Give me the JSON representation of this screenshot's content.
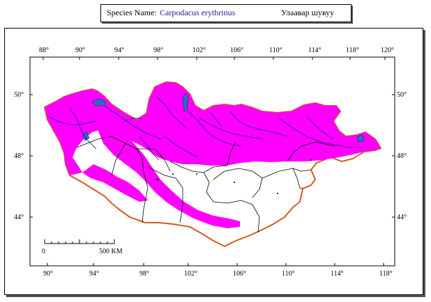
{
  "title": {
    "label": "Species Name:",
    "scientific_name": "Carpodacus erythrinus",
    "local_name": "Улаавар шувуу"
  },
  "colors": {
    "range_fill": "#ff00ff",
    "border": "#d45a1c",
    "rivers": "#1a1a99",
    "provinces": "#000000"
  },
  "axes": {
    "top": [
      "88°",
      "90°",
      "94°",
      "98°",
      "102°",
      "106°",
      "110°",
      "114°",
      "118°",
      "120°"
    ],
    "bottom": [
      "90°",
      "94°",
      "98°",
      "102°",
      "106°",
      "110°",
      "114°",
      "118°"
    ],
    "left": [
      "50°",
      "48°",
      "44°"
    ],
    "right": [
      "50°",
      "48°",
      "44°"
    ]
  },
  "scale_bar": {
    "start_label": "0",
    "end_label": "500 KM"
  }
}
